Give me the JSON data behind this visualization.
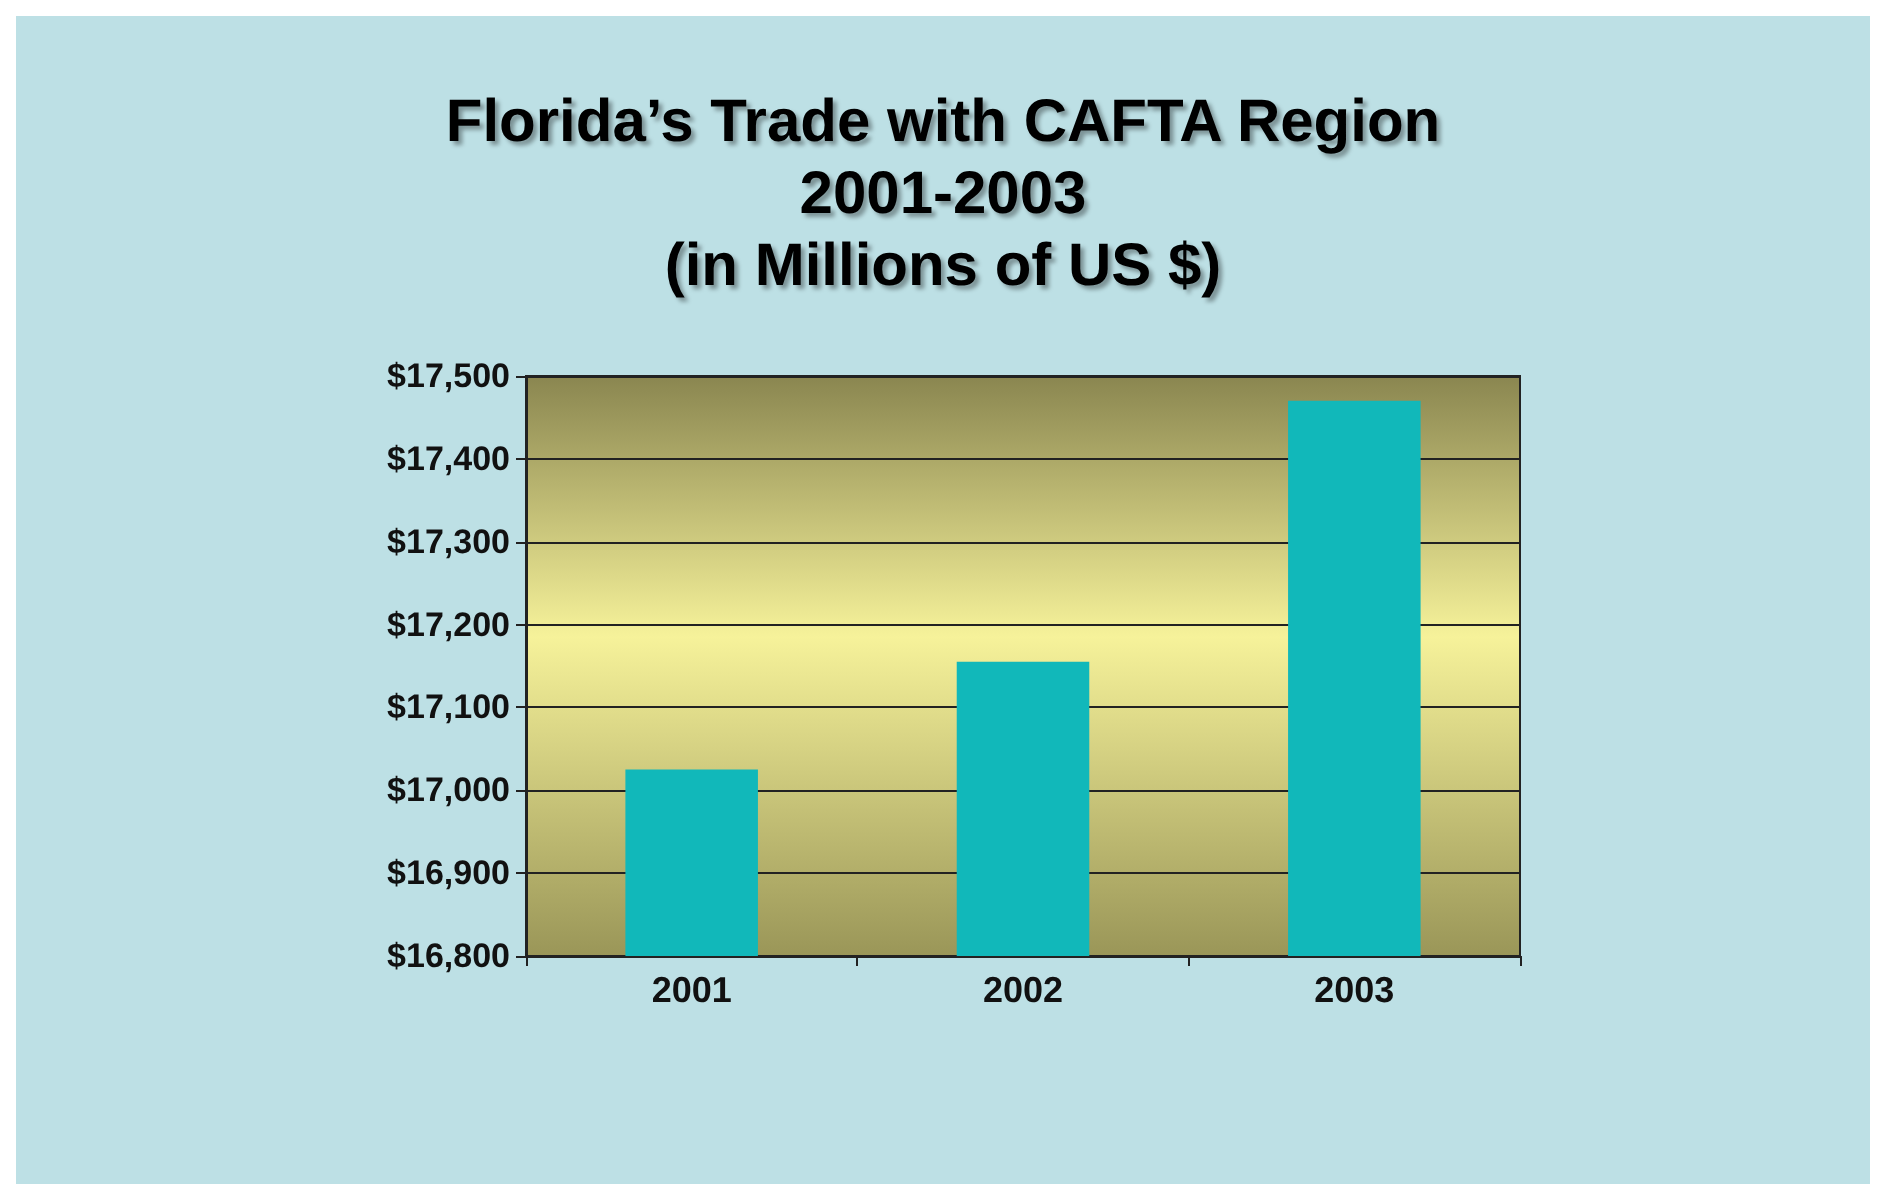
{
  "chart_data": {
    "type": "bar",
    "title": "Florida’s Trade with CAFTA Region\n2001-2003\n(in Millions of US $)",
    "categories": [
      "2001",
      "2002",
      "2003"
    ],
    "values": [
      17025,
      17155,
      17470
    ],
    "color": "#11b8ba",
    "ylim": [
      16800,
      17500
    ],
    "yticks": [
      {
        "value": 16800,
        "label": "$16,800"
      },
      {
        "value": 16900,
        "label": "$16,900"
      },
      {
        "value": 17000,
        "label": "$17,000"
      },
      {
        "value": 17100,
        "label": "$17,100"
      },
      {
        "value": 17200,
        "label": "$17,200"
      },
      {
        "value": 17300,
        "label": "$17,300"
      },
      {
        "value": 17400,
        "label": "$17,400"
      },
      {
        "value": 17500,
        "label": "$17,500"
      }
    ],
    "grid": "y"
  }
}
